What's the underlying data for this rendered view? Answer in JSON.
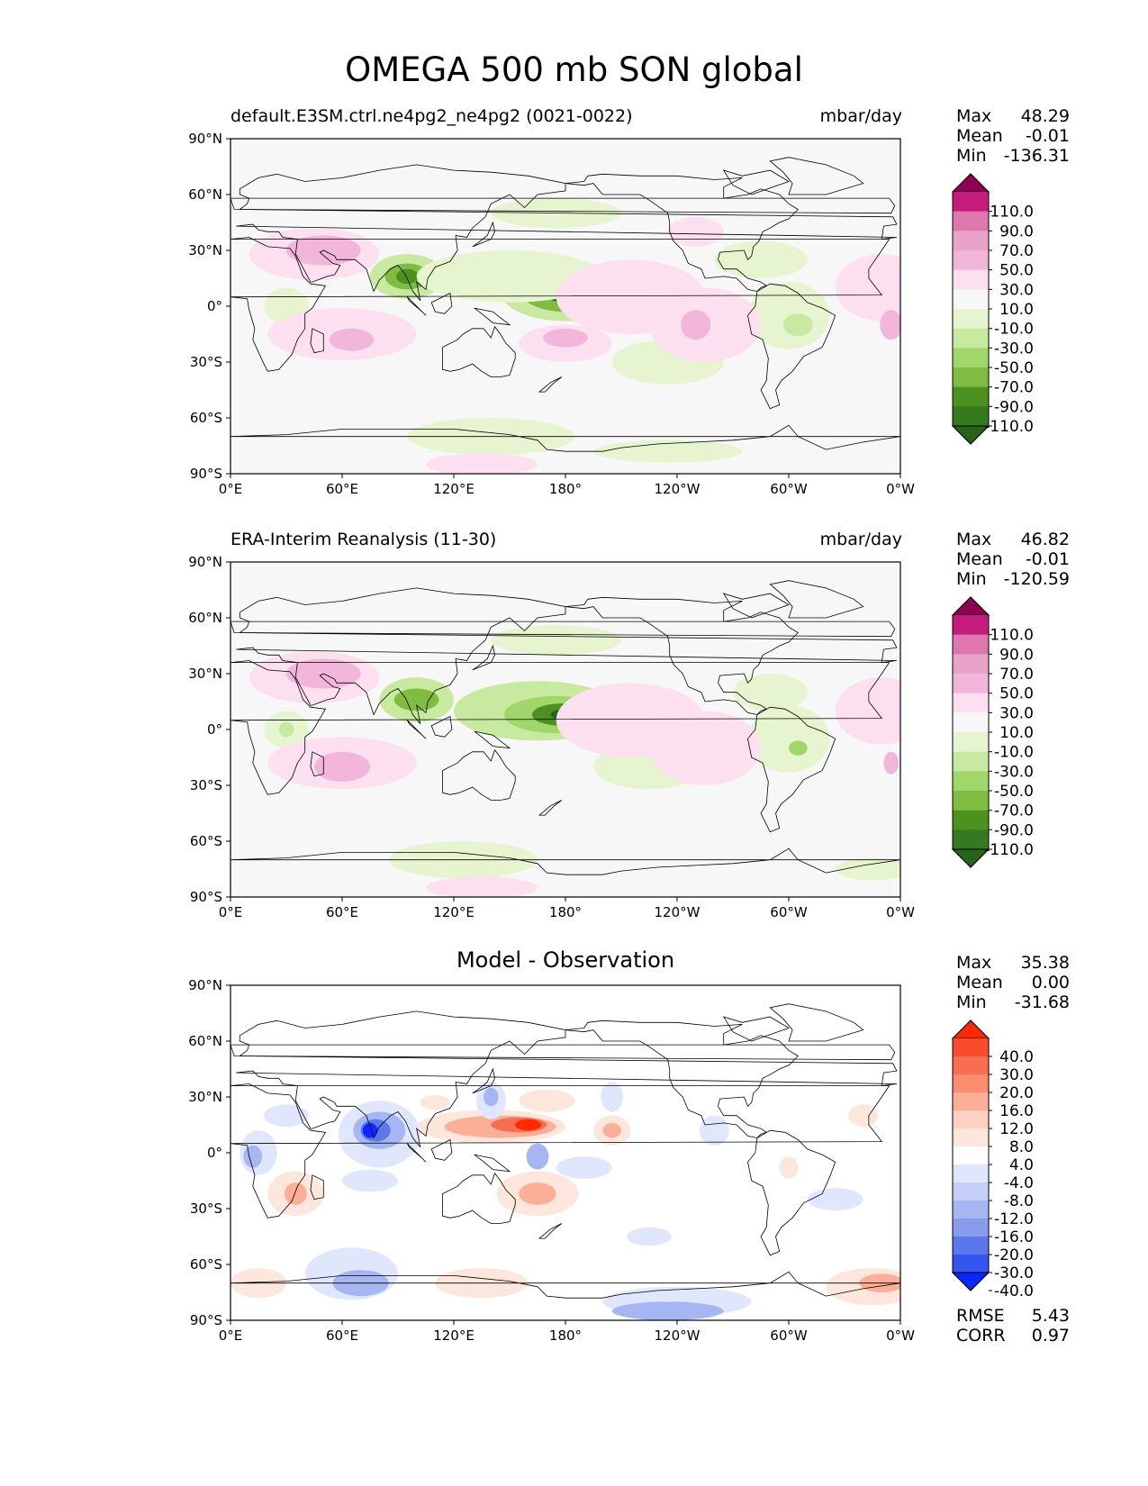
{
  "title": "OMEGA 500 mb SON global",
  "axes": {
    "x_ticks": [
      "0°E",
      "60°E",
      "120°E",
      "180°",
      "120°W",
      "60°W",
      "0°W"
    ],
    "y_ticks": [
      "90°N",
      "60°N",
      "30°N",
      "0°",
      "30°S",
      "60°S",
      "90°S"
    ]
  },
  "panels": [
    {
      "title_left": "default.E3SM.ctrl.ne4pg2_ne4pg2 (0021-0022)",
      "title_right": "mbar/day",
      "stats": {
        "max_label": "Max",
        "max": "48.29",
        "mean_label": "Mean",
        "mean": "-0.01",
        "min_label": "Min",
        "min": "-136.31"
      }
    },
    {
      "title_left": "ERA-Interim Reanalysis (11-30)",
      "title_right": "mbar/day",
      "stats": {
        "max_label": "Max",
        "max": "46.82",
        "mean_label": "Mean",
        "mean": "-0.01",
        "min_label": "Min",
        "min": "-120.59"
      }
    },
    {
      "title_center": "Model - Observation",
      "stats": {
        "max_label": "Max",
        "max": "35.38",
        "mean_label": "Mean",
        "mean": "0.00",
        "min_label": "Min",
        "min": "-31.68"
      },
      "extra": {
        "rmse_label": "RMSE",
        "rmse": "5.43",
        "corr_label": "CORR",
        "corr": "0.97"
      }
    }
  ],
  "colorbar_main": {
    "labels": [
      "110.0",
      "90.0",
      "70.0",
      "50.0",
      "30.0",
      "10.0",
      "-10.0",
      "-30.0",
      "-50.0",
      "-70.0",
      "-90.0",
      "-110.0"
    ],
    "colors": [
      "#8e0152",
      "#c51b7d",
      "#de77ae",
      "#e9a3c9",
      "#f1b6da",
      "#fde0ef",
      "#f7f7f7",
      "#e6f5d0",
      "#c7e9a0",
      "#a1d76a",
      "#7fbc41",
      "#4d9221",
      "#357a1e",
      "#276419"
    ]
  },
  "colorbar_diff": {
    "labels": [
      "40.0",
      "30.0",
      "20.0",
      "16.0",
      "12.0",
      "8.0",
      "4.0",
      "-4.0",
      "-8.0",
      "-12.0",
      "-16.0",
      "-20.0",
      "-30.0",
      "-40.0"
    ],
    "colors": [
      "#ff2a00",
      "#fb4a2e",
      "#f86e50",
      "#fb8c6e",
      "#fcae97",
      "#fdd0c2",
      "#fde6dc",
      "#ffffff",
      "#e0e6fb",
      "#c5d0f8",
      "#a6b6f3",
      "#889cee",
      "#5a78ea",
      "#3355f0",
      "#0a28ff"
    ]
  },
  "palette": {
    "p1": "#8e0152",
    "p2": "#c51b7d",
    "p3": "#de77ae",
    "p4": "#f1b6da",
    "p5": "#fde0ef",
    "g1": "#e6f5d0",
    "g2": "#c7e9a0",
    "g3": "#a1d76a",
    "g4": "#7fbc41",
    "g5": "#4d9221",
    "g6": "#276419",
    "r1": "#fde6dc",
    "r2": "#fcae97",
    "r3": "#f86e50",
    "r4": "#ff2a00",
    "b1": "#e0e6fb",
    "b2": "#a6b6f3",
    "b3": "#5a78ea",
    "b4": "#0a28ff",
    "background": "#f7f7f7"
  },
  "fields": {
    "model": [
      {
        "lon": 180,
        "lat": 8,
        "rx": 35,
        "ry": 16,
        "level": -2
      },
      {
        "lon": 180,
        "lat": 8,
        "rx": 24,
        "ry": 11,
        "level": -4
      },
      {
        "lon": 180,
        "lat": 8,
        "rx": 12,
        "ry": 6,
        "level": -6
      },
      {
        "lon": 95,
        "lat": 16,
        "rx": 20,
        "ry": 12,
        "level": -2
      },
      {
        "lon": 95,
        "lat": 16,
        "rx": 12,
        "ry": 7,
        "level": -4
      },
      {
        "lon": 95,
        "lat": 16,
        "rx": 6,
        "ry": 4,
        "level": -5
      },
      {
        "lon": 150,
        "lat": 16,
        "rx": 50,
        "ry": 14,
        "level": -1
      },
      {
        "lon": 175,
        "lat": 50,
        "rx": 35,
        "ry": 8,
        "level": -1
      },
      {
        "lon": 300,
        "lat": -5,
        "rx": 22,
        "ry": 18,
        "level": -1
      },
      {
        "lon": 305,
        "lat": -10,
        "rx": 8,
        "ry": 6,
        "level": -2
      },
      {
        "lon": 285,
        "lat": 25,
        "rx": 25,
        "ry": 10,
        "level": -1
      },
      {
        "lon": 30,
        "lat": 0,
        "rx": 12,
        "ry": 10,
        "level": -1
      },
      {
        "lon": 140,
        "lat": -70,
        "rx": 45,
        "ry": 10,
        "level": -1
      },
      {
        "lon": 235,
        "lat": -30,
        "rx": 30,
        "ry": 12,
        "level": -1
      },
      {
        "lon": 235,
        "lat": -78,
        "rx": 40,
        "ry": 6,
        "level": -1
      },
      {
        "lon": 45,
        "lat": 28,
        "rx": 35,
        "ry": 14,
        "level": 1
      },
      {
        "lon": 50,
        "lat": 30,
        "rx": 20,
        "ry": 8,
        "level": 2
      },
      {
        "lon": 60,
        "lat": -15,
        "rx": 40,
        "ry": 14,
        "level": 1
      },
      {
        "lon": 65,
        "lat": -18,
        "rx": 12,
        "ry": 6,
        "level": 2
      },
      {
        "lon": 180,
        "lat": -20,
        "rx": 25,
        "ry": 10,
        "level": 1
      },
      {
        "lon": 180,
        "lat": -17,
        "rx": 12,
        "ry": 5,
        "level": 2
      },
      {
        "lon": 215,
        "lat": 5,
        "rx": 40,
        "ry": 20,
        "level": 1
      },
      {
        "lon": 255,
        "lat": -10,
        "rx": 30,
        "ry": 20,
        "level": 1
      },
      {
        "lon": 250,
        "lat": -10,
        "rx": 8,
        "ry": 8,
        "level": 2
      },
      {
        "lon": 350,
        "lat": 10,
        "rx": 25,
        "ry": 18,
        "level": 1
      },
      {
        "lon": 355,
        "lat": -10,
        "rx": 6,
        "ry": 8,
        "level": 2
      },
      {
        "lon": 250,
        "lat": 40,
        "rx": 15,
        "ry": 8,
        "level": 1
      },
      {
        "lon": 135,
        "lat": -85,
        "rx": 30,
        "ry": 6,
        "level": 1
      }
    ],
    "obs": [
      {
        "lon": 165,
        "lat": 10,
        "rx": 45,
        "ry": 16,
        "level": -2
      },
      {
        "lon": 175,
        "lat": 8,
        "rx": 28,
        "ry": 10,
        "level": -3
      },
      {
        "lon": 178,
        "lat": 8,
        "rx": 16,
        "ry": 6,
        "level": -5
      },
      {
        "lon": 180,
        "lat": 8,
        "rx": 8,
        "ry": 3,
        "level": -6
      },
      {
        "lon": 100,
        "lat": 16,
        "rx": 20,
        "ry": 12,
        "level": -2
      },
      {
        "lon": 100,
        "lat": 16,
        "rx": 12,
        "ry": 6,
        "level": -4
      },
      {
        "lon": 175,
        "lat": 48,
        "rx": 35,
        "ry": 8,
        "level": -1
      },
      {
        "lon": 300,
        "lat": -5,
        "rx": 22,
        "ry": 18,
        "level": -1
      },
      {
        "lon": 305,
        "lat": -10,
        "rx": 5,
        "ry": 4,
        "level": -3
      },
      {
        "lon": 290,
        "lat": 20,
        "rx": 20,
        "ry": 10,
        "level": -1
      },
      {
        "lon": 30,
        "lat": 0,
        "rx": 12,
        "ry": 10,
        "level": -1
      },
      {
        "lon": 30,
        "lat": 0,
        "rx": 4,
        "ry": 4,
        "level": -2
      },
      {
        "lon": 125,
        "lat": -70,
        "rx": 40,
        "ry": 10,
        "level": -1
      },
      {
        "lon": 225,
        "lat": -20,
        "rx": 30,
        "ry": 12,
        "level": -1
      },
      {
        "lon": 345,
        "lat": -75,
        "rx": 20,
        "ry": 6,
        "level": -1
      },
      {
        "lon": 45,
        "lat": 28,
        "rx": 35,
        "ry": 14,
        "level": 1
      },
      {
        "lon": 50,
        "lat": 30,
        "rx": 20,
        "ry": 8,
        "level": 2
      },
      {
        "lon": 60,
        "lat": -18,
        "rx": 40,
        "ry": 14,
        "level": 1
      },
      {
        "lon": 60,
        "lat": -20,
        "rx": 15,
        "ry": 8,
        "level": 2
      },
      {
        "lon": 215,
        "lat": 5,
        "rx": 40,
        "ry": 20,
        "level": 1
      },
      {
        "lon": 255,
        "lat": -10,
        "rx": 30,
        "ry": 20,
        "level": 1
      },
      {
        "lon": 350,
        "lat": 10,
        "rx": 25,
        "ry": 18,
        "level": 1
      },
      {
        "lon": 355,
        "lat": -18,
        "rx": 4,
        "ry": 6,
        "level": 2
      },
      {
        "lon": 135,
        "lat": -85,
        "rx": 30,
        "ry": 6,
        "level": 1
      }
    ],
    "diff": [
      {
        "lon": 80,
        "lat": 10,
        "rx": 22,
        "ry": 18,
        "level": -1
      },
      {
        "lon": 80,
        "lat": 12,
        "rx": 14,
        "ry": 10,
        "level": -2
      },
      {
        "lon": 78,
        "lat": 12,
        "rx": 8,
        "ry": 6,
        "level": -3
      },
      {
        "lon": 75,
        "lat": 12,
        "rx": 4,
        "ry": 4,
        "level": -4
      },
      {
        "lon": 140,
        "lat": 14,
        "rx": 40,
        "ry": 9,
        "level": 1
      },
      {
        "lon": 145,
        "lat": 14,
        "rx": 30,
        "ry": 6,
        "level": 2
      },
      {
        "lon": 155,
        "lat": 15,
        "rx": 15,
        "ry": 4,
        "level": 3
      },
      {
        "lon": 160,
        "lat": 15,
        "rx": 7,
        "ry": 3,
        "level": 4
      },
      {
        "lon": 205,
        "lat": 12,
        "rx": 10,
        "ry": 8,
        "level": 1
      },
      {
        "lon": 205,
        "lat": 12,
        "rx": 5,
        "ry": 4,
        "level": 2
      },
      {
        "lon": 165,
        "lat": -22,
        "rx": 22,
        "ry": 12,
        "level": 1
      },
      {
        "lon": 165,
        "lat": -22,
        "rx": 10,
        "ry": 6,
        "level": 2
      },
      {
        "lon": 35,
        "lat": -22,
        "rx": 15,
        "ry": 12,
        "level": 1
      },
      {
        "lon": 35,
        "lat": -22,
        "rx": 6,
        "ry": 6,
        "level": 2
      },
      {
        "lon": 170,
        "lat": 28,
        "rx": 15,
        "ry": 6,
        "level": 1
      },
      {
        "lon": 110,
        "lat": 27,
        "rx": 8,
        "ry": 4,
        "level": 1
      },
      {
        "lon": 135,
        "lat": -70,
        "rx": 25,
        "ry": 8,
        "level": 1
      },
      {
        "lon": 345,
        "lat": -72,
        "rx": 25,
        "ry": 10,
        "level": 1
      },
      {
        "lon": 350,
        "lat": -70,
        "rx": 12,
        "ry": 5,
        "level": 2
      },
      {
        "lon": 15,
        "lat": -70,
        "rx": 15,
        "ry": 8,
        "level": 1
      },
      {
        "lon": 300,
        "lat": -8,
        "rx": 5,
        "ry": 6,
        "level": 1
      },
      {
        "lon": 340,
        "lat": 20,
        "rx": 8,
        "ry": 6,
        "level": 1
      },
      {
        "lon": 140,
        "lat": 28,
        "rx": 8,
        "ry": 10,
        "level": -1
      },
      {
        "lon": 140,
        "lat": 30,
        "rx": 4,
        "ry": 5,
        "level": -2
      },
      {
        "lon": 165,
        "lat": -2,
        "rx": 6,
        "ry": 7,
        "level": -2
      },
      {
        "lon": 15,
        "lat": 0,
        "rx": 10,
        "ry": 12,
        "level": -1
      },
      {
        "lon": 12,
        "lat": -2,
        "rx": 5,
        "ry": 6,
        "level": -2
      },
      {
        "lon": 30,
        "lat": 20,
        "rx": 12,
        "ry": 6,
        "level": -1
      },
      {
        "lon": 75,
        "lat": -15,
        "rx": 15,
        "ry": 6,
        "level": -1
      },
      {
        "lon": 190,
        "lat": -8,
        "rx": 15,
        "ry": 6,
        "level": -1
      },
      {
        "lon": 260,
        "lat": 12,
        "rx": 8,
        "ry": 8,
        "level": -1
      },
      {
        "lon": 65,
        "lat": -65,
        "rx": 25,
        "ry": 14,
        "level": -1
      },
      {
        "lon": 70,
        "lat": -70,
        "rx": 15,
        "ry": 7,
        "level": -2
      },
      {
        "lon": 240,
        "lat": -80,
        "rx": 40,
        "ry": 8,
        "level": -1
      },
      {
        "lon": 235,
        "lat": -85,
        "rx": 30,
        "ry": 5,
        "level": -2
      },
      {
        "lon": 225,
        "lat": -45,
        "rx": 12,
        "ry": 5,
        "level": -1
      },
      {
        "lon": 325,
        "lat": -25,
        "rx": 15,
        "ry": 6,
        "level": -1
      },
      {
        "lon": 205,
        "lat": 30,
        "rx": 6,
        "ry": 8,
        "level": -1
      }
    ]
  }
}
